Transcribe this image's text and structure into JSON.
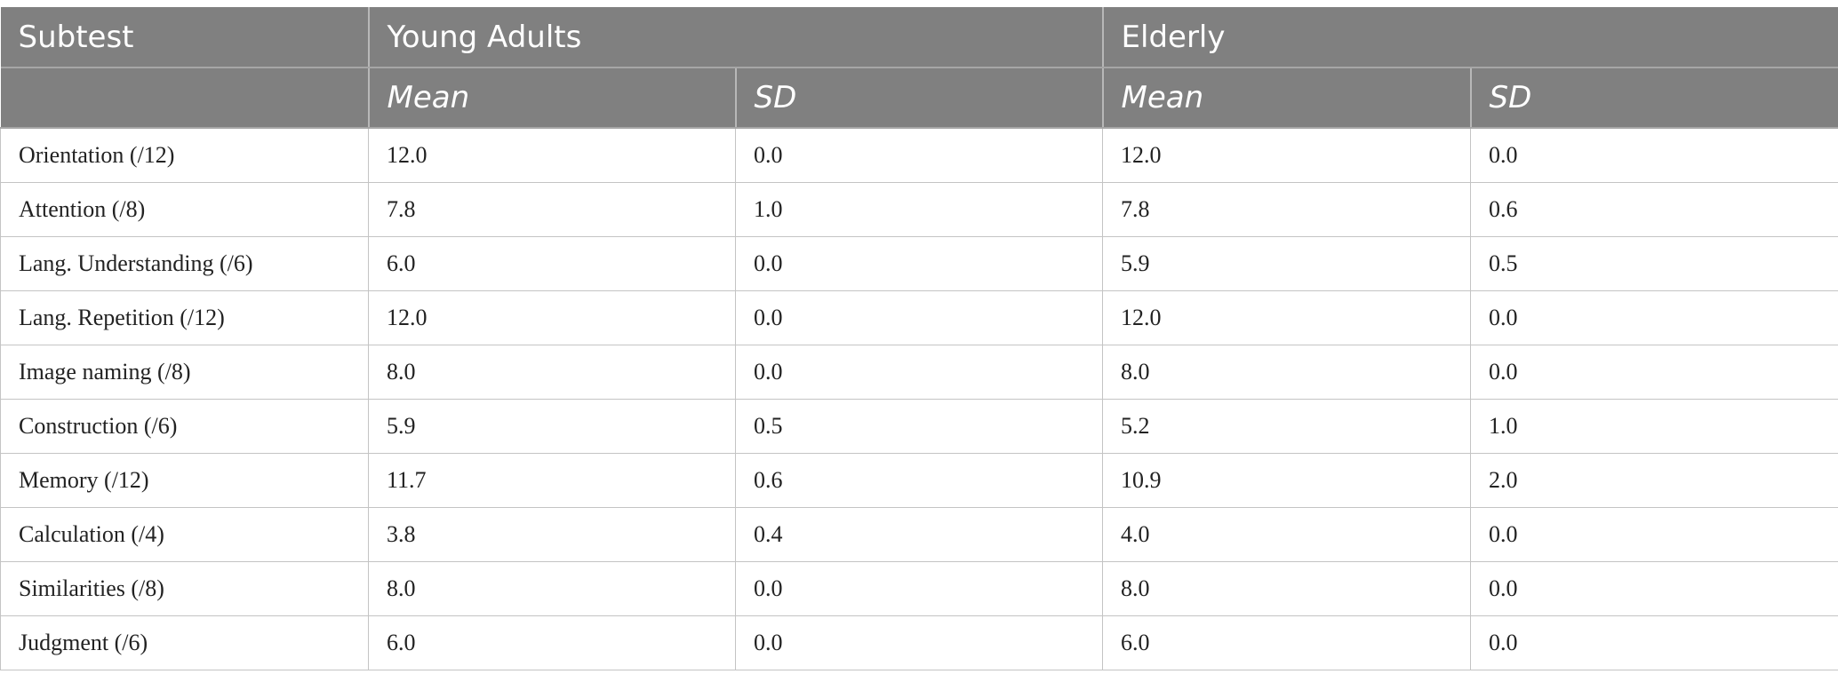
{
  "table": {
    "header": {
      "subtest_label": "Subtest",
      "group_young": "Young Adults",
      "group_elderly": "Elderly",
      "mean_label": "Mean",
      "sd_label": "SD"
    },
    "rows": [
      {
        "subtest": "Orientation (/12)",
        "young_mean": "12.0",
        "young_sd": "0.0",
        "elderly_mean": "12.0",
        "elderly_sd": "0.0"
      },
      {
        "subtest": "Attention (/8)",
        "young_mean": "7.8",
        "young_sd": "1.0",
        "elderly_mean": "7.8",
        "elderly_sd": "0.6"
      },
      {
        "subtest": "Lang. Understanding (/6)",
        "young_mean": "6.0",
        "young_sd": "0.0",
        "elderly_mean": "5.9",
        "elderly_sd": "0.5"
      },
      {
        "subtest": "Lang. Repetition (/12)",
        "young_mean": "12.0",
        "young_sd": "0.0",
        "elderly_mean": "12.0",
        "elderly_sd": "0.0"
      },
      {
        "subtest": "Image naming (/8)",
        "young_mean": "8.0",
        "young_sd": "0.0",
        "elderly_mean": "8.0",
        "elderly_sd": "0.0"
      },
      {
        "subtest": "Construction (/6)",
        "young_mean": "5.9",
        "young_sd": "0.5",
        "elderly_mean": "5.2",
        "elderly_sd": "1.0"
      },
      {
        "subtest": "Memory (/12)",
        "young_mean": "11.7",
        "young_sd": "0.6",
        "elderly_mean": "10.9",
        "elderly_sd": "2.0"
      },
      {
        "subtest": "Calculation (/4)",
        "young_mean": "3.8",
        "young_sd": "0.4",
        "elderly_mean": "4.0",
        "elderly_sd": "0.0"
      },
      {
        "subtest": "Similarities (/8)",
        "young_mean": "8.0",
        "young_sd": "0.0",
        "elderly_mean": "8.0",
        "elderly_sd": "0.0"
      },
      {
        "subtest": "Judgment (/6)",
        "young_mean": "6.0",
        "young_sd": "0.0",
        "elderly_mean": "6.0",
        "elderly_sd": "0.0"
      }
    ]
  }
}
